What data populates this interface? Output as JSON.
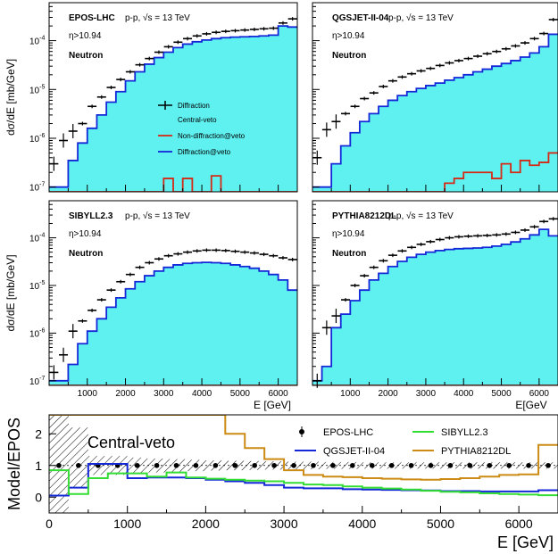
{
  "colors": {
    "central_veto_fill": "#5ff0f0",
    "nondiff_line": "#d42a16",
    "diff_veto_line": "#1428d8",
    "sibyll_line": "#33dd33",
    "pythia_line": "#cc8b14",
    "diffraction_marker": "#000000"
  },
  "chart_data": [
    {
      "type": "step-histogram",
      "panel": "top-left",
      "model": "EPOS-LHC",
      "label_collision": "p-p, √s = 13 TeV",
      "label_eta": "η>10.94",
      "label_particle": "Neutron",
      "ylabel": "dσ/dE [mb/GeV]",
      "xlabel": "",
      "yscale": "log",
      "ylim": [
        8e-08,
        0.0006
      ],
      "xlim": [
        0,
        6500
      ],
      "xticks": [
        1000,
        2000,
        3000,
        4000,
        5000,
        6000
      ],
      "yticks": [
        "10^{-7}",
        "10^{-6}",
        "10^{-5}",
        "10^{-4}"
      ],
      "legend": [
        "Diffraction",
        "Central-veto",
        "Non-diffraction@veto",
        "Diffraction@veto"
      ],
      "x": [
        125,
        375,
        625,
        875,
        1125,
        1375,
        1625,
        1875,
        2125,
        2375,
        2625,
        2875,
        3125,
        3375,
        3625,
        3875,
        4125,
        4375,
        4625,
        4875,
        5125,
        5375,
        5625,
        5875,
        6125,
        6375
      ],
      "diffraction": [
        3e-07,
        9e-07,
        1.4e-06,
        2e-06,
        4.5e-06,
        7e-06,
        1.1e-05,
        1.6e-05,
        2.3e-05,
        3.2e-05,
        4.3e-05,
        5.8e-05,
        7.5e-05,
        9.3e-05,
        0.00011,
        0.000125,
        0.000138,
        0.000148,
        0.000155,
        0.00016,
        0.000165,
        0.00017,
        0.000175,
        0.00018,
        0.00023,
        0.00028
      ],
      "central_veto": [
        1e-07,
        1e-07,
        3.5e-07,
        8e-07,
        1.6e-06,
        3e-06,
        5.5e-06,
        9e-06,
        1.5e-05,
        2.3e-05,
        3.3e-05,
        4.5e-05,
        5.8e-05,
        7.2e-05,
        8.5e-05,
        9.5e-05,
        0.000103,
        0.00011,
        0.000115,
        0.000118,
        0.00012,
        0.000122,
        0.000125,
        0.00013,
        0.0002,
        0.00019
      ],
      "non_diffraction_veto": [
        1e-08,
        1e-08,
        1e-08,
        1e-08,
        1e-08,
        1e-08,
        1e-08,
        1e-08,
        1e-08,
        1e-08,
        1e-08,
        1e-08,
        1.5e-07,
        1e-08,
        1.5e-07,
        1e-08,
        1e-08,
        1.7e-07,
        1e-08,
        1e-08,
        1e-08,
        1e-08,
        1e-08,
        1e-08,
        1e-08,
        1e-08
      ],
      "diffraction_veto": [
        1e-07,
        1e-07,
        3.5e-07,
        8e-07,
        1.6e-06,
        3e-06,
        5.5e-06,
        9e-06,
        1.5e-05,
        2.3e-05,
        3.3e-05,
        4.5e-05,
        5.8e-05,
        7.2e-05,
        8.5e-05,
        9.5e-05,
        0.000103,
        0.00011,
        0.000115,
        0.000118,
        0.00012,
        0.000122,
        0.000125,
        0.00013,
        0.0002,
        0.00019
      ]
    },
    {
      "type": "step-histogram",
      "panel": "top-right",
      "model": "QGSJET-II-04",
      "label_collision": "p-p, √s = 13 TeV",
      "label_eta": "η>10.94",
      "label_particle": "Neutron",
      "yscale": "log",
      "ylim": [
        8e-08,
        0.0006
      ],
      "xlim": [
        0,
        6500
      ],
      "x": [
        125,
        375,
        625,
        875,
        1125,
        1375,
        1625,
        1875,
        2125,
        2375,
        2625,
        2875,
        3125,
        3375,
        3625,
        3875,
        4125,
        4375,
        4625,
        4875,
        5125,
        5375,
        5625,
        5875,
        6125,
        6375
      ],
      "diffraction": [
        4e-07,
        1.5e-06,
        2.2e-06,
        3.2e-06,
        4.5e-06,
        6.5e-06,
        8.5e-06,
        1.15e-05,
        1.5e-05,
        1.8e-05,
        2.1e-05,
        2.4e-05,
        2.7e-05,
        3.1e-05,
        3.5e-05,
        3.9e-05,
        4.3e-05,
        4.8e-05,
        5.4e-05,
        6e-05,
        6.8e-05,
        7.8e-05,
        9e-05,
        0.00011,
        0.00014,
        0.00027
      ],
      "central_veto": [
        1e-07,
        1e-07,
        3e-07,
        7e-07,
        1.3e-06,
        2.2e-06,
        3.2e-06,
        4.5e-06,
        6e-06,
        7.5e-06,
        9e-06,
        1.05e-05,
        1.2e-05,
        1.35e-05,
        1.55e-05,
        1.75e-05,
        2e-05,
        2.3e-05,
        2.6e-05,
        3e-05,
        3.4e-05,
        3.9e-05,
        4.6e-05,
        5.6e-05,
        7.5e-05,
        0.000135
      ],
      "non_diffraction_veto": [
        1e-08,
        1e-08,
        1e-08,
        1e-08,
        1e-08,
        1e-08,
        1e-08,
        1e-08,
        1e-08,
        1e-08,
        1e-08,
        1e-08,
        1e-08,
        1e-08,
        1.2e-07,
        1.5e-07,
        2e-07,
        2e-07,
        2e-07,
        1.5e-07,
        3e-07,
        2e-07,
        3.5e-07,
        2.8e-07,
        3.2e-07,
        5e-07
      ],
      "diffraction_veto": [
        1e-07,
        1e-07,
        3e-07,
        7e-07,
        1.3e-06,
        2.2e-06,
        3.2e-06,
        4.5e-06,
        6e-06,
        7.5e-06,
        9e-06,
        1.05e-05,
        1.2e-05,
        1.35e-05,
        1.55e-05,
        1.75e-05,
        2e-05,
        2.3e-05,
        2.6e-05,
        3e-05,
        3.4e-05,
        3.9e-05,
        4.6e-05,
        5.6e-05,
        7.5e-05,
        0.000135
      ]
    },
    {
      "type": "step-histogram",
      "panel": "mid-left",
      "model": "SIBYLL2.3",
      "label_collision": "p-p, √s = 13 TeV",
      "label_eta": "η>10.94",
      "label_particle": "Neutron",
      "ylabel": "dσ/dE [mb/GeV]",
      "xlabel": "E [GeV]",
      "yscale": "log",
      "ylim": [
        8e-08,
        0.0006
      ],
      "xlim": [
        0,
        6500
      ],
      "xticks": [
        1000,
        2000,
        3000,
        4000,
        5000,
        6000
      ],
      "x": [
        125,
        375,
        625,
        875,
        1125,
        1375,
        1625,
        1875,
        2125,
        2375,
        2625,
        2875,
        3125,
        3375,
        3625,
        3875,
        4125,
        4375,
        4625,
        4875,
        5125,
        5375,
        5625,
        5875,
        6125,
        6375
      ],
      "diffraction": [
        1.5e-07,
        3.5e-07,
        1.1e-06,
        1.8e-06,
        3e-06,
        5e-06,
        8e-06,
        1.2e-05,
        1.7e-05,
        2.4e-05,
        3e-05,
        3.6e-05,
        4.2e-05,
        4.6e-05,
        5e-05,
        5.3e-05,
        5.5e-05,
        5.5e-05,
        5.4e-05,
        5.2e-05,
        5e-05,
        4.8e-05,
        4.5e-05,
        4.2e-05,
        3.8e-05,
        3.5e-05
      ],
      "central_veto": [
        1e-07,
        1e-07,
        2.2e-07,
        6e-07,
        1.1e-06,
        2e-06,
        3.5e-06,
        5.5e-06,
        8.5e-06,
        1.2e-05,
        1.6e-05,
        2e-05,
        2.4e-05,
        2.7e-05,
        2.9e-05,
        3e-05,
        3.05e-05,
        3e-05,
        2.9e-05,
        2.7e-05,
        2.5e-05,
        2.3e-05,
        2e-05,
        1.7e-05,
        1.3e-05,
        8e-06
      ],
      "non_diffraction_veto": [
        1e-08,
        1e-08,
        1e-08,
        1e-08,
        1e-08,
        1e-08,
        1e-08,
        1e-08,
        1e-08,
        1e-08,
        1e-08,
        1e-08,
        1e-08,
        1e-08,
        1e-08,
        1e-08,
        1e-08,
        1e-08,
        1e-08,
        1e-08,
        1e-08,
        1e-08,
        1e-08,
        1e-08,
        1e-08,
        1e-08
      ],
      "diffraction_veto": [
        1e-07,
        1e-07,
        2.2e-07,
        6e-07,
        1.1e-06,
        2e-06,
        3.5e-06,
        5.5e-06,
        8.5e-06,
        1.2e-05,
        1.6e-05,
        2e-05,
        2.4e-05,
        2.7e-05,
        2.9e-05,
        3e-05,
        3.05e-05,
        3e-05,
        2.9e-05,
        2.7e-05,
        2.5e-05,
        2.3e-05,
        2e-05,
        1.7e-05,
        1.3e-05,
        8e-06
      ]
    },
    {
      "type": "step-histogram",
      "panel": "mid-right",
      "model": "PYTHIA8212DL",
      "label_collision": "p-p, √s = 13 TeV",
      "label_eta": "η>10.94",
      "label_particle": "Neutron",
      "xlabel": "E[GeV",
      "yscale": "log",
      "ylim": [
        8e-08,
        0.0006
      ],
      "xlim": [
        0,
        6500
      ],
      "xticks": [
        1000,
        2000,
        3000,
        4000,
        5000,
        6000
      ],
      "x": [
        125,
        375,
        625,
        875,
        1125,
        1375,
        1625,
        1875,
        2125,
        2375,
        2625,
        2875,
        3125,
        3375,
        3625,
        3875,
        4125,
        4375,
        4625,
        4875,
        5125,
        5375,
        5625,
        5875,
        6125,
        6375
      ],
      "diffraction": [
        1e-07,
        1.3e-06,
        2.3e-06,
        5e-06,
        1e-05,
        1.6e-05,
        2.4e-05,
        3.3e-05,
        4.3e-05,
        5.3e-05,
        6.3e-05,
        7.3e-05,
        8.3e-05,
        9.2e-05,
        0.0001,
        0.000105,
        0.000108,
        0.00011,
        0.000112,
        0.000115,
        0.00012,
        0.00013,
        0.000145,
        0.00017,
        0.00022,
        0.00025
      ],
      "central_veto": [
        1e-07,
        2e-07,
        1.3e-06,
        2.5e-06,
        4.8e-06,
        8e-06,
        1.3e-05,
        1.8e-05,
        2.5e-05,
        3.2e-05,
        3.9e-05,
        4.5e-05,
        5e-05,
        5.4e-05,
        5.7e-05,
        5.9e-05,
        6e-05,
        6.1e-05,
        6.3e-05,
        6.7e-05,
        7.3e-05,
        8.2e-05,
        9.5e-05,
        0.000115,
        0.00015,
        0.00011
      ],
      "non_diffraction_veto": [
        1e-08,
        1e-08,
        1e-08,
        1e-08,
        1e-08,
        1e-08,
        1e-08,
        1e-08,
        1e-08,
        1e-08,
        1e-08,
        1e-08,
        1e-08,
        1e-08,
        1e-08,
        1e-08,
        1e-08,
        1e-08,
        1e-08,
        1e-08,
        1e-08,
        1e-08,
        1e-08,
        1e-08,
        1e-08,
        1e-08
      ],
      "diffraction_veto": [
        1e-07,
        2e-07,
        1.3e-06,
        2.5e-06,
        4.8e-06,
        8e-06,
        1.3e-05,
        1.8e-05,
        2.5e-05,
        3.2e-05,
        3.9e-05,
        4.5e-05,
        5e-05,
        5.4e-05,
        5.7e-05,
        5.9e-05,
        6e-05,
        6.1e-05,
        6.3e-05,
        6.7e-05,
        7.3e-05,
        8.2e-05,
        9.5e-05,
        0.000115,
        0.00015,
        0.00011
      ]
    },
    {
      "type": "line",
      "panel": "ratio",
      "ylabel": "Model/EPOS",
      "xlabel": "E [GeV]",
      "annotation": "Central-veto",
      "xlim": [
        0,
        6500
      ],
      "ylim": [
        -0.5,
        2.6
      ],
      "xticks": [
        0,
        1000,
        2000,
        3000,
        4000,
        5000,
        6000
      ],
      "yticks": [
        0,
        1,
        2
      ],
      "x_edges": [
        0,
        250,
        500,
        750,
        1000,
        1250,
        1500,
        1750,
        2000,
        2250,
        2500,
        2750,
        3000,
        3250,
        3500,
        3750,
        4000,
        4250,
        4500,
        4750,
        5000,
        5250,
        5500,
        5750,
        6000,
        6250,
        6500
      ],
      "epos_points_x": [
        125,
        375,
        625,
        875,
        1125,
        1375,
        1625,
        1875,
        2125,
        2375,
        2625,
        2875,
        3125,
        3375,
        3625,
        3875,
        4125,
        4375,
        4625,
        4875,
        5125,
        5375,
        5625,
        5875,
        6125,
        6375
      ],
      "series": [
        {
          "name": "EPOS-LHC",
          "values": [
            1,
            1,
            1,
            1,
            1,
            1,
            1,
            1,
            1,
            1,
            1,
            1,
            1,
            1,
            1,
            1,
            1,
            1,
            1,
            1,
            1,
            1,
            1,
            1,
            1,
            1
          ]
        },
        {
          "name": "QGSJET-II-04",
          "values": [
            0.05,
            0.3,
            1.05,
            1.05,
            0.6,
            0.62,
            0.62,
            0.6,
            0.55,
            0.5,
            0.45,
            0.38,
            0.3,
            0.28,
            0.28,
            0.25,
            0.24,
            0.23,
            0.22,
            0.21,
            0.19,
            0.19,
            0.18,
            0.18,
            0.18,
            0.22
          ]
        },
        {
          "name": "SIBYLL2.3",
          "values": [
            0.85,
            0.1,
            0.6,
            0.75,
            0.75,
            0.65,
            0.78,
            0.62,
            0.58,
            0.55,
            0.52,
            0.5,
            0.45,
            0.4,
            0.38,
            0.34,
            0.3,
            0.27,
            0.24,
            0.2,
            0.17,
            0.15,
            0.12,
            0.1,
            0.08,
            0.06
          ]
        },
        {
          "name": "PYTHIA8212DL",
          "values": [
            2.6,
            2.6,
            2.6,
            2.6,
            2.6,
            2.6,
            2.6,
            2.6,
            2.6,
            2.0,
            1.55,
            1.2,
            0.85,
            0.7,
            0.65,
            0.63,
            0.6,
            0.58,
            0.56,
            0.55,
            0.57,
            0.6,
            0.65,
            0.7,
            0.72,
            1.65
          ]
        }
      ],
      "epos_band_upper": [
        2.6,
        2.2,
        1.3,
        1.3,
        1.25,
        1.22,
        1.2,
        1.18,
        1.16,
        1.15,
        1.14,
        1.13,
        1.12,
        1.12,
        1.11,
        1.11,
        1.1,
        1.1,
        1.1,
        1.1,
        1.1,
        1.1,
        1.1,
        1.1,
        1.1,
        1.1
      ],
      "epos_band_lower": [
        -0.5,
        0.3,
        0.7,
        0.7,
        0.75,
        0.78,
        0.8,
        0.82,
        0.84,
        0.85,
        0.86,
        0.87,
        0.88,
        0.88,
        0.89,
        0.89,
        0.9,
        0.9,
        0.9,
        0.9,
        0.9,
        0.9,
        0.9,
        0.9,
        0.9,
        0.9
      ]
    }
  ]
}
